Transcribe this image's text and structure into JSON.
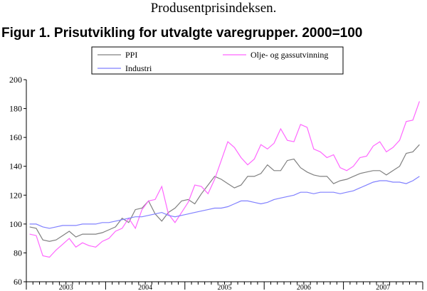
{
  "header": {
    "text": "Produsentprisindeksen."
  },
  "figure": {
    "title": "Figur 1. Prisutvikling for utvalgte varegrupper. 2000=100"
  },
  "chart_data": {
    "type": "line",
    "title": "Figur 1. Prisutvikling for utvalgte varegrupper. 2000=100",
    "xlabel": "",
    "ylabel": "",
    "ylim": [
      60,
      200
    ],
    "yticks": [
      60,
      80,
      100,
      120,
      140,
      160,
      180,
      200
    ],
    "x_axis": {
      "start": "2003-01",
      "end": "2007-12",
      "interval": "month"
    },
    "x": [
      "2003-01",
      "2003-02",
      "2003-03",
      "2003-04",
      "2003-05",
      "2003-06",
      "2003-07",
      "2003-08",
      "2003-09",
      "2003-10",
      "2003-11",
      "2003-12",
      "2004-01",
      "2004-02",
      "2004-03",
      "2004-04",
      "2004-05",
      "2004-06",
      "2004-07",
      "2004-08",
      "2004-09",
      "2004-10",
      "2004-11",
      "2004-12",
      "2005-01",
      "2005-02",
      "2005-03",
      "2005-04",
      "2005-05",
      "2005-06",
      "2005-07",
      "2005-08",
      "2005-09",
      "2005-10",
      "2005-11",
      "2005-12",
      "2006-01",
      "2006-02",
      "2006-03",
      "2006-04",
      "2006-05",
      "2006-06",
      "2006-07",
      "2006-08",
      "2006-09",
      "2006-10",
      "2006-11",
      "2006-12",
      "2007-01",
      "2007-02",
      "2007-03",
      "2007-04",
      "2007-05",
      "2007-06",
      "2007-07",
      "2007-08",
      "2007-09",
      "2007-10",
      "2007-11",
      "2007-12"
    ],
    "year_labels": [
      "2003",
      "2004",
      "2005",
      "2006",
      "2007"
    ],
    "legend": {
      "placement": "top",
      "border": true
    },
    "grid": false,
    "series": [
      {
        "name": "PPI",
        "color": "#808080",
        "values": [
          98,
          97,
          89,
          88,
          89,
          92,
          95,
          91,
          93,
          93,
          93,
          94,
          96,
          98,
          104,
          101,
          110,
          111,
          116,
          107,
          102,
          108,
          111,
          116,
          117,
          114,
          121,
          127,
          133,
          131,
          128,
          125,
          127,
          133,
          133,
          135,
          141,
          137,
          137,
          144,
          145,
          139,
          136,
          134,
          133,
          133,
          128,
          130,
          131,
          133,
          135,
          136,
          137,
          137,
          134,
          137,
          140,
          149,
          150,
          155
        ]
      },
      {
        "name": "Olje- og gassutvinning",
        "color": "#ff66ff",
        "values": [
          93,
          92,
          78,
          77,
          82,
          86,
          90,
          84,
          87,
          85,
          84,
          88,
          90,
          95,
          97,
          104,
          97,
          110,
          116,
          117,
          126,
          107,
          101,
          108,
          115,
          127,
          126,
          121,
          131,
          144,
          157,
          153,
          146,
          141,
          145,
          155,
          152,
          156,
          166,
          158,
          157,
          169,
          167,
          152,
          150,
          146,
          148,
          139,
          137,
          140,
          146,
          147,
          154,
          157,
          150,
          153,
          158,
          171,
          172,
          185
        ]
      },
      {
        "name": "Industri",
        "color": "#8080ff",
        "values": [
          100,
          100,
          98,
          97,
          98,
          99,
          99,
          99,
          100,
          100,
          100,
          101,
          101,
          102,
          103,
          104,
          105,
          105,
          106,
          107,
          108,
          106,
          105,
          106,
          107,
          108,
          109,
          110,
          111,
          111,
          112,
          114,
          116,
          116,
          115,
          114,
          115,
          117,
          118,
          119,
          120,
          122,
          122,
          121,
          122,
          122,
          122,
          121,
          122,
          123,
          125,
          127,
          129,
          130,
          130,
          129,
          129,
          128,
          130,
          133
        ]
      }
    ]
  }
}
